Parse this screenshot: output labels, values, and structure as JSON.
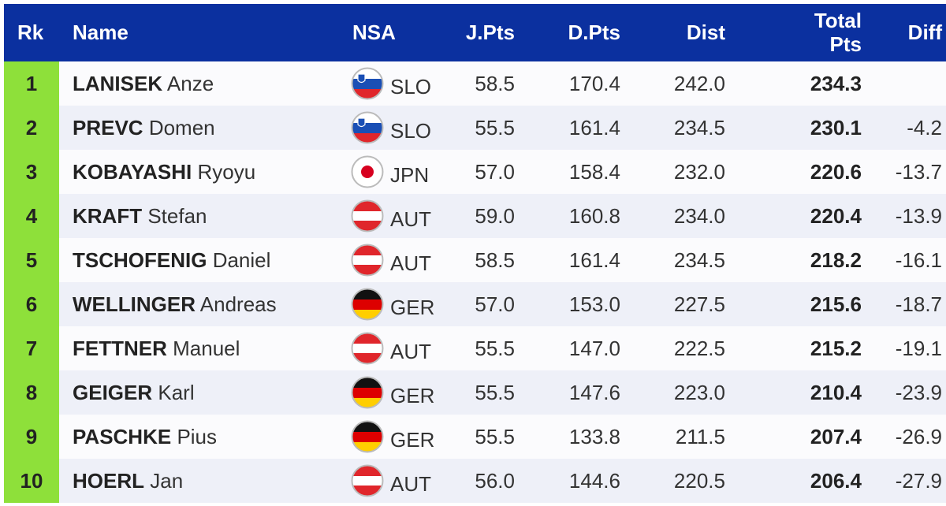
{
  "table": {
    "header": {
      "rank": "Rk",
      "name": "Name",
      "nsa": "NSA",
      "jpts": "J.Pts",
      "dpts": "D.Pts",
      "dist": "Dist",
      "total": "Total Pts",
      "diff": "Diff"
    },
    "rows": [
      {
        "rank": "1",
        "last_name": "LANISEK",
        "first_name": "Anze",
        "nsa": "SLO",
        "jpts": "58.5",
        "dpts": "170.4",
        "dist": "242.0",
        "total": "234.3"
      },
      {
        "rank": "2",
        "last_name": "PREVC",
        "first_name": "Domen",
        "nsa": "SLO",
        "jpts": "55.5",
        "dpts": "161.4",
        "dist": "234.5",
        "total": "230.1",
        "diff": "-4.2"
      },
      {
        "rank": "3",
        "last_name": "KOBAYASHI",
        "first_name": "Ryoyu",
        "nsa": "JPN",
        "jpts": "57.0",
        "dpts": "158.4",
        "dist": "232.0",
        "total": "220.6",
        "diff": "-13.7"
      },
      {
        "rank": "4",
        "last_name": "KRAFT",
        "first_name": "Stefan",
        "nsa": "AUT",
        "jpts": "59.0",
        "dpts": "160.8",
        "dist": "234.0",
        "total": "220.4",
        "diff": "-13.9"
      },
      {
        "rank": "5",
        "last_name": "TSCHOFENIG",
        "first_name": "Daniel",
        "nsa": "AUT",
        "jpts": "58.5",
        "dpts": "161.4",
        "dist": "234.5",
        "total": "218.2",
        "diff": "-16.1"
      },
      {
        "rank": "6",
        "last_name": "WELLINGER",
        "first_name": "Andreas",
        "nsa": "GER",
        "jpts": "57.0",
        "dpts": "153.0",
        "dist": "227.5",
        "total": "215.6",
        "diff": "-18.7"
      },
      {
        "rank": "7",
        "last_name": "FETTNER",
        "first_name": "Manuel",
        "nsa": "AUT",
        "jpts": "55.5",
        "dpts": "147.0",
        "dist": "222.5",
        "total": "215.2",
        "diff": "-19.1"
      },
      {
        "rank": "8",
        "last_name": "GEIGER",
        "first_name": "Karl",
        "nsa": "GER",
        "jpts": "55.5",
        "dpts": "147.6",
        "dist": "223.0",
        "total": "210.4",
        "diff": "-23.9"
      },
      {
        "rank": "9",
        "last_name": "PASCHKE",
        "first_name": "Pius",
        "nsa": "GER",
        "jpts": "55.5",
        "dpts": "133.8",
        "dist": "211.5",
        "total": "207.4",
        "diff": "-26.9"
      },
      {
        "rank": "10",
        "last_name": "HOERL",
        "first_name": "Jan",
        "nsa": "AUT",
        "jpts": "56.0",
        "dpts": "144.6",
        "dist": "220.5",
        "total": "206.4",
        "diff": "-27.9"
      }
    ]
  }
}
